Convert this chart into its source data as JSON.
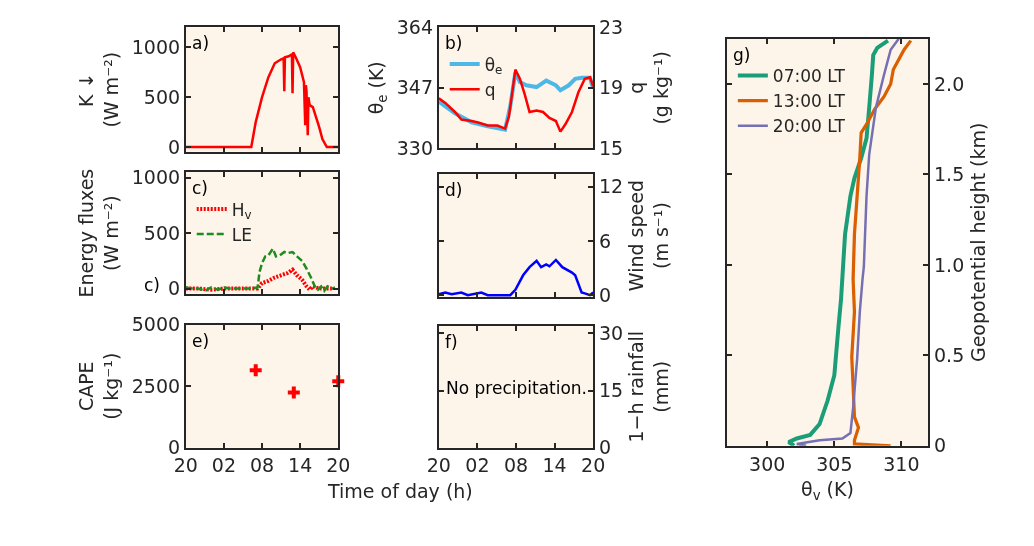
{
  "chart_data": [
    {
      "type": "line",
      "ylabel": "K ↓\n(W m⁻²)",
      "xlim": [
        "--01-01T20:00",
        "--01-02T20:00"
      ],
      "xticks": [
        {
          "value": "--01-01T20:00",
          "label": "20"
        },
        {
          "value": "--01-02T02:00",
          "label": "02"
        },
        {
          "value": "--01-02T08:00",
          "label": "08"
        },
        {
          "value": "--01-02T14:00",
          "label": "14"
        },
        {
          "value": "--01-02T20:00",
          "label": "20"
        }
      ],
      "ylim": [
        -50,
        1200
      ],
      "yticks": [
        0,
        500,
        1000
      ],
      "tick_labels": "y",
      "annotations": [
        "a)"
      ],
      "series": [
        {
          "color": "#ff0000",
          "x": [
            "--01-01T20:00",
            "--01-02T06:18",
            "--01-02T07:00",
            "--01-02T08:00",
            "--01-02T09:00",
            "--01-02T10:00",
            "--01-02T11:00",
            "--01-02T11:24",
            "--01-02T11:30",
            "--01-02T11:36",
            "--01-02T12:12",
            "--01-02T12:42",
            "--01-02T12:48",
            "--01-02T12:54",
            "--01-02T13:18",
            "--01-02T14:00",
            "--01-02T14:36",
            "--01-02T14:48",
            "--01-02T14:54",
            "--01-02T15:00",
            "--01-02T15:12",
            "--01-02T15:18",
            "--01-02T15:30",
            "--01-02T16:00",
            "--01-02T16:30",
            "--01-02T17:00",
            "--01-02T17:30",
            "--01-02T18:12",
            "--01-02T20:00"
          ],
          "values": [
            0,
            0,
            250,
            500,
            700,
            840,
            880,
            890,
            560,
            900,
            910,
            930,
            540,
            950,
            900,
            800,
            650,
            220,
            620,
            560,
            120,
            500,
            420,
            400,
            300,
            200,
            80,
            0,
            0
          ]
        }
      ]
    },
    {
      "type": "line",
      "ylabel": "θ$_{e}$ (K)",
      "y2label": "q\n(g kg⁻¹)",
      "xlim": [
        "--01-01T20:00",
        "--01-02T20:00"
      ],
      "xticks": [
        {
          "value": "--01-01T20:00",
          "label": "20"
        },
        {
          "value": "--01-02T02:00",
          "label": "02"
        },
        {
          "value": "--01-02T08:00",
          "label": "08"
        },
        {
          "value": "--01-02T14:00",
          "label": "14"
        },
        {
          "value": "--01-02T20:00",
          "label": "20"
        }
      ],
      "ylim": [
        330,
        364
      ],
      "yticks": [
        330,
        347,
        364
      ],
      "y2lim": [
        15,
        23
      ],
      "y2ticks": [
        15,
        19,
        23
      ],
      "tick_labels": "y",
      "legend": "top left",
      "annotations": [
        "b)"
      ],
      "series": [
        {
          "name": "θ$_{e}$",
          "color": "#4db8e8",
          "x": [
            "--01-01T20:00",
            "--01-01T22:30",
            "--01-02T01:06",
            "--01-02T03:36",
            "--01-02T06:18",
            "--01-02T07:06",
            "--01-02T07:54",
            "--01-02T08:36",
            "--01-02T09:36",
            "--01-02T11:12",
            "--01-02T12:42",
            "--01-02T14:12",
            "--01-02T14:54",
            "--01-02T16:12",
            "--01-02T17:12",
            "--01-02T18:12",
            "--01-02T19:30",
            "--01-02T20:00"
          ],
          "values": [
            343.1,
            339.8,
            337.3,
            336.2,
            335.2,
            341.8,
            351.3,
            348.6,
            347.7,
            347.2,
            349.0,
            347.7,
            346.3,
            347.7,
            349.5,
            349.8,
            349.8,
            346.8
          ]
        },
        {
          "name": "q",
          "color": "#ff0000",
          "axis": "y2",
          "x": [
            "--01-01T20:00",
            "--01-01T21:00",
            "--01-01T22:30",
            "--01-01T23:30",
            "--01-02T01:06",
            "--01-02T02:06",
            "--01-02T03:36",
            "--01-02T05:06",
            "--01-02T06:18",
            "--01-02T06:54",
            "--01-02T07:54",
            "--01-02T08:36",
            "--01-02T09:24",
            "--01-02T10:06",
            "--01-02T11:12",
            "--01-02T12:12",
            "--01-02T13:12",
            "--01-02T14:12",
            "--01-02T14:54",
            "--01-02T15:42",
            "--01-02T16:42",
            "--01-02T17:42",
            "--01-02T18:42",
            "--01-02T19:30",
            "--01-02T20:00"
          ],
          "values": [
            18.3,
            18.0,
            17.4,
            16.9,
            16.8,
            16.7,
            16.5,
            16.5,
            16.3,
            17.1,
            20.2,
            19.6,
            18.5,
            17.4,
            17.5,
            17.4,
            17.0,
            16.8,
            16.1,
            16.6,
            17.4,
            18.7,
            19.6,
            19.7,
            19.1
          ]
        }
      ]
    },
    {
      "type": "line",
      "ylabel": "Energy fluxes\n(W m⁻²)",
      "xlim": [
        "--01-01T20:00",
        "--01-02T20:00"
      ],
      "xticks": [
        {
          "value": "--01-01T20:00",
          "label": "20"
        },
        {
          "value": "--01-02T02:00",
          "label": "02"
        },
        {
          "value": "--01-02T08:00",
          "label": "08"
        },
        {
          "value": "--01-02T14:00",
          "label": "14"
        },
        {
          "value": "--01-02T20:00",
          "label": "20"
        }
      ],
      "ylim": [
        -50,
        1050
      ],
      "yticks": [
        0,
        500,
        1000
      ],
      "tick_labels": "y",
      "legend": "top left",
      "annotations": [
        "c)",
        "c)"
      ],
      "series": [
        {
          "name": "H$_{v}$",
          "color": "#ff0000",
          "line_style": "dotted",
          "x": [
            "--01-01T20:00",
            "--01-01T22:00",
            "--01-02T00:00",
            "--01-02T02:00",
            "--01-02T04:00",
            "--01-02T06:00",
            "--01-02T07:18",
            "--01-02T07:36",
            "--01-02T08:00",
            "--01-02T09:00",
            "--01-02T10:00",
            "--01-02T11:00",
            "--01-02T12:00",
            "--01-02T12:48",
            "--01-02T13:30",
            "--01-02T14:18",
            "--01-02T15:00",
            "--01-02T15:30",
            "--01-02T16:00",
            "--01-02T17:00",
            "--01-02T18:00",
            "--01-02T19:00"
          ],
          "values": [
            0,
            0,
            -10,
            0,
            0,
            0,
            0,
            20,
            50,
            70,
            100,
            120,
            140,
            170,
            120,
            80,
            20,
            -10,
            20,
            0,
            0,
            0
          ]
        },
        {
          "name": "LE",
          "color": "#1e8c1e",
          "line_style": "dashed",
          "x": [
            "--01-01T20:00",
            "--01-01T21:00",
            "--01-01T22:00",
            "--01-01T23:00",
            "--01-02T00:00",
            "--01-02T01:00",
            "--01-02T02:00",
            "--01-02T03:00",
            "--01-02T04:00",
            "--01-02T05:00",
            "--01-02T06:00",
            "--01-02T07:18",
            "--01-02T07:36",
            "--01-02T08:00",
            "--01-02T08:30",
            "--01-02T09:00",
            "--01-02T09:42",
            "--01-02T10:12",
            "--01-02T10:48",
            "--01-02T11:30",
            "--01-02T12:00",
            "--01-02T12:48",
            "--01-02T13:30",
            "--01-02T14:18",
            "--01-02T15:00",
            "--01-02T15:42",
            "--01-02T16:18",
            "--01-02T16:48",
            "--01-02T17:18",
            "--01-02T17:48",
            "--01-02T18:18",
            "--01-02T19:00",
            "--01-02T19:30"
          ],
          "values": [
            10,
            0,
            0,
            -20,
            10,
            -10,
            10,
            0,
            0,
            0,
            0,
            10,
            150,
            230,
            290,
            300,
            360,
            290,
            300,
            330,
            320,
            330,
            290,
            250,
            180,
            100,
            20,
            -10,
            20,
            -20,
            20,
            0,
            10
          ]
        }
      ]
    },
    {
      "type": "line",
      "ylabel": "Wind speed\n(m s⁻¹)",
      "xlim": [
        "--01-01T20:00",
        "--01-02T20:00"
      ],
      "xticks": [
        {
          "value": "--01-01T20:00",
          "label": "20"
        },
        {
          "value": "--01-02T02:00",
          "label": "02"
        },
        {
          "value": "--01-02T08:00",
          "label": "08"
        },
        {
          "value": "--01-02T14:00",
          "label": "14"
        },
        {
          "value": "--01-02T20:00",
          "label": "20"
        }
      ],
      "ylim": [
        -0.2,
        13.4
      ],
      "yticks": [
        0,
        6,
        12
      ],
      "tick_labels": "y",
      "annotations": [
        "d)"
      ],
      "series": [
        {
          "color": "#0000ff",
          "x": [
            "--01-01T20:00",
            "--01-01T21:00",
            "--01-01T22:00",
            "--01-01T23:30",
            "--01-02T00:30",
            "--01-02T02:36",
            "--01-02T03:36",
            "--01-02T07:06",
            "--01-02T07:54",
            "--01-02T09:06",
            "--01-02T10:06",
            "--01-02T11:12",
            "--01-02T11:54",
            "--01-02T12:42",
            "--01-02T13:12",
            "--01-02T14:12",
            "--01-02T15:12",
            "--01-02T16:42",
            "--01-02T17:12",
            "--01-02T18:12",
            "--01-02T18:42",
            "--01-02T19:30",
            "--01-02T20:00"
          ],
          "values": [
            0.1,
            0.3,
            0.1,
            0.3,
            0,
            0.3,
            0,
            0,
            0.6,
            2.2,
            3.1,
            3.8,
            3.1,
            3.4,
            3.2,
            3.9,
            3.1,
            2.5,
            2.2,
            0.3,
            0.2,
            0,
            0.3
          ]
        }
      ]
    },
    {
      "type": "scatter",
      "ylabel": "CAPE\n(J kg⁻¹)",
      "xlabel": "Time of day (h)",
      "marker": "cross",
      "xlim": [
        "--01-01T20:00",
        "--01-02T20:00"
      ],
      "xticks": [
        {
          "value": "--01-01T20:00",
          "label": "20"
        },
        {
          "value": "--01-02T02:00",
          "label": "02"
        },
        {
          "value": "--01-02T08:00",
          "label": "08"
        },
        {
          "value": "--01-02T14:00",
          "label": "14"
        },
        {
          "value": "--01-02T20:00",
          "label": "20"
        }
      ],
      "ylim": [
        0,
        5000
      ],
      "yticks": [
        0,
        2500,
        5000
      ],
      "annotations": [
        "e)"
      ],
      "series": [
        {
          "color": "#ff0000",
          "x": [
            "--01-02T07:00",
            "--01-02T13:00",
            "--01-02T20:00"
          ],
          "values": [
            3150,
            2250,
            2700
          ]
        }
      ]
    },
    {
      "type": "line",
      "ylabel": "1−h rainfall\n(mm)",
      "xlim": [
        "--01-01T20:00",
        "--01-02T20:00"
      ],
      "xticks": [
        {
          "value": "--01-01T20:00",
          "label": "20"
        },
        {
          "value": "--01-02T02:00",
          "label": "02"
        },
        {
          "value": "--01-02T08:00",
          "label": "08"
        },
        {
          "value": "--01-02T14:00",
          "label": "14"
        },
        {
          "value": "--01-02T20:00",
          "label": "20"
        }
      ],
      "ylim": [
        0,
        32
      ],
      "yticks": [
        0,
        15,
        30
      ],
      "annotations": [
        "f)",
        "No precipitation."
      ]
    },
    {
      "type": "line",
      "xlabel": "θ$_{v}$ (K)",
      "ylabel": "Geopotential height (km)",
      "xlim": [
        297,
        312
      ],
      "xticks": [
        300,
        305,
        310
      ],
      "ylim": [
        0,
        2.25
      ],
      "yticks": [
        0,
        0.5,
        {
          "value": 1,
          "label": "1.0"
        },
        1.5,
        {
          "value": 2,
          "label": "2.0"
        }
      ],
      "legend": "top left",
      "annotations": [
        "g)"
      ],
      "series": [
        {
          "name": "07:00 LT",
          "color": "#1b9e77",
          "x": [
            302.0,
            301.6,
            302.2,
            303.2,
            303.9,
            304.5,
            305.0,
            305.3,
            305.5,
            305.8,
            306.2,
            306.5,
            307.0,
            307.4,
            307.6,
            307.8,
            307.9,
            308.2,
            309.0
          ],
          "values": [
            0,
            0.02,
            0.04,
            0.06,
            0.12,
            0.25,
            0.39,
            0.65,
            0.81,
            1.17,
            1.38,
            1.48,
            1.59,
            1.7,
            1.87,
            2.05,
            2.16,
            2.2,
            2.24
          ]
        },
        {
          "name": "13:00 LT",
          "color": "#d95f02",
          "x": [
            309.2,
            306.5,
            306.5,
            306.8,
            306.5,
            306.4,
            306.3,
            306.5,
            306.4,
            306.5,
            306.7,
            306.9,
            307.0,
            307.5,
            308.0,
            308.7,
            309.2,
            309.4,
            310.2,
            310.7
          ],
          "values": [
            0,
            0.01,
            0.03,
            0.1,
            0.16,
            0.33,
            0.49,
            0.74,
            0.92,
            1.17,
            1.38,
            1.59,
            1.73,
            1.79,
            1.86,
            1.93,
            2.0,
            2.08,
            2.19,
            2.24
          ]
        },
        {
          "name": "20:00 LT",
          "color": "#7570b3",
          "x": [
            302.9,
            302.2,
            303.9,
            305.6,
            306.2,
            306.4,
            306.7,
            306.9,
            307.1,
            307.2,
            307.4,
            307.6,
            308.1,
            308.7,
            309.2,
            309.8
          ],
          "values": [
            0,
            0.01,
            0.03,
            0.04,
            0.07,
            0.21,
            0.48,
            0.74,
            0.92,
            0.99,
            1.38,
            1.61,
            1.87,
            2.05,
            2.19,
            2.25
          ]
        }
      ]
    }
  ]
}
